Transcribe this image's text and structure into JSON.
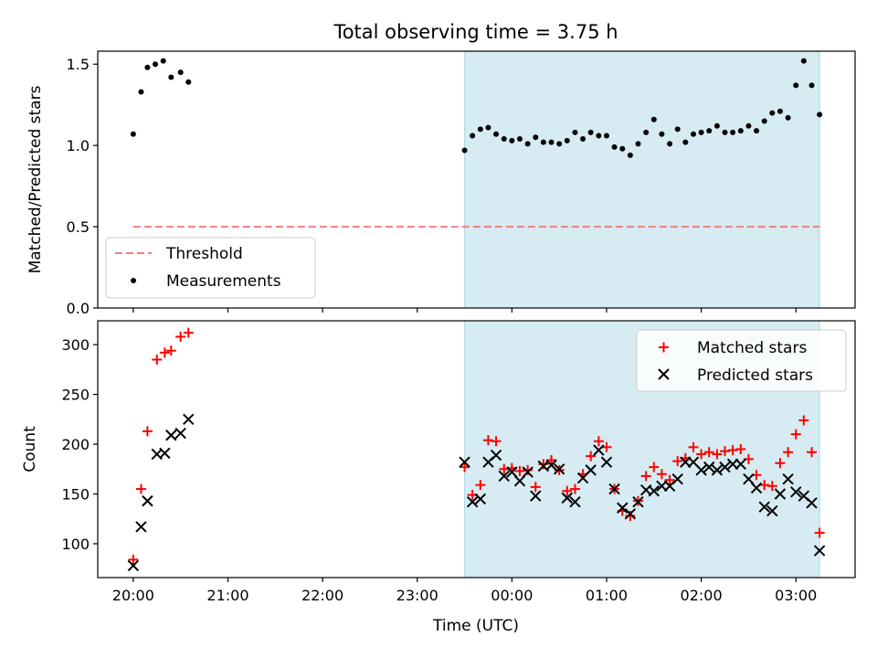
{
  "title": "Total observing time = 3.75 h",
  "xlabel": "Time (UTC)",
  "colors": {
    "shade": "#add8e6",
    "threshold": "#f08080",
    "matched": "#ff0000",
    "predicted": "#000000",
    "measurements": "#000000"
  },
  "chart_data": [
    {
      "type": "scatter",
      "ylabel": "Matched/Predicted stars",
      "xlim": [
        -0.375,
        7.625
      ],
      "ylim": [
        0.0,
        1.58
      ],
      "yticks": [
        0.0,
        0.5,
        1.0,
        1.5
      ],
      "ytick_labels": [
        "0.0",
        "0.5",
        "1.0",
        "1.5"
      ],
      "xticks": [
        0,
        1,
        2,
        3,
        4,
        5,
        6,
        7
      ],
      "xtick_labels": [
        "20:00",
        "21:00",
        "22:00",
        "23:00",
        "00:00",
        "01:00",
        "02:00",
        "03:00"
      ],
      "shaded_region": [
        3.5,
        7.25
      ],
      "threshold": {
        "name": "Threshold",
        "y": 0.5,
        "x": [
          0.0,
          7.25
        ]
      },
      "legend": {
        "position": "lower-left",
        "entries": [
          "Threshold",
          "Measurements"
        ]
      },
      "series": [
        {
          "name": "Measurements",
          "x": [
            0.0,
            0.083,
            0.15,
            0.233,
            0.317,
            0.4,
            0.5,
            0.583,
            3.5,
            3.583,
            3.667,
            3.75,
            3.833,
            3.917,
            4.0,
            4.083,
            4.167,
            4.25,
            4.333,
            4.417,
            4.5,
            4.583,
            4.667,
            4.75,
            4.833,
            4.917,
            5.0,
            5.083,
            5.167,
            5.25,
            5.333,
            5.417,
            5.5,
            5.583,
            5.667,
            5.75,
            5.833,
            5.917,
            6.0,
            6.083,
            6.167,
            6.25,
            6.333,
            6.417,
            6.5,
            6.583,
            6.667,
            6.75,
            6.833,
            6.917,
            7.0,
            7.083,
            7.167,
            7.25
          ],
          "y": [
            1.07,
            1.33,
            1.48,
            1.5,
            1.52,
            1.42,
            1.45,
            1.39,
            0.97,
            1.06,
            1.1,
            1.11,
            1.07,
            1.04,
            1.03,
            1.04,
            1.01,
            1.05,
            1.02,
            1.02,
            1.01,
            1.03,
            1.08,
            1.04,
            1.08,
            1.06,
            1.06,
            0.99,
            0.98,
            0.94,
            1.01,
            1.08,
            1.16,
            1.07,
            1.01,
            1.1,
            1.02,
            1.07,
            1.08,
            1.09,
            1.12,
            1.08,
            1.08,
            1.09,
            1.12,
            1.09,
            1.15,
            1.2,
            1.21,
            1.17,
            1.37,
            1.52,
            1.37,
            1.19
          ]
        }
      ]
    },
    {
      "type": "scatter",
      "ylabel": "Count",
      "xlabel": "Time (UTC)",
      "xlim": [
        -0.375,
        7.625
      ],
      "ylim": [
        66,
        324
      ],
      "yticks": [
        100,
        150,
        200,
        250,
        300
      ],
      "ytick_labels": [
        "100",
        "150",
        "200",
        "250",
        "300"
      ],
      "xticks": [
        0,
        1,
        2,
        3,
        4,
        5,
        6,
        7
      ],
      "xtick_labels": [
        "20:00",
        "21:00",
        "22:00",
        "23:00",
        "00:00",
        "01:00",
        "02:00",
        "03:00"
      ],
      "shaded_region": [
        3.5,
        7.25
      ],
      "legend": {
        "position": "top-right",
        "entries": [
          "Matched stars",
          "Predicted stars"
        ]
      },
      "series": [
        {
          "name": "Matched stars",
          "marker": "+",
          "x": [
            0.0,
            0.083,
            0.15,
            0.25,
            0.333,
            0.4,
            0.5,
            0.583,
            3.5,
            3.583,
            3.667,
            3.75,
            3.833,
            3.917,
            4.0,
            4.083,
            4.167,
            4.25,
            4.333,
            4.417,
            4.5,
            4.583,
            4.667,
            4.75,
            4.833,
            4.917,
            5.0,
            5.083,
            5.167,
            5.25,
            5.333,
            5.417,
            5.5,
            5.583,
            5.667,
            5.75,
            5.833,
            5.917,
            6.0,
            6.083,
            6.167,
            6.25,
            6.333,
            6.417,
            6.5,
            6.583,
            6.667,
            6.75,
            6.833,
            6.917,
            7.0,
            7.083,
            7.167,
            7.25
          ],
          "y": [
            84,
            155,
            213,
            285,
            292,
            294,
            308,
            312,
            177,
            149,
            159,
            204,
            203,
            175,
            176,
            173,
            174,
            157,
            180,
            184,
            174,
            153,
            155,
            170,
            188,
            203,
            197,
            155,
            133,
            128,
            143,
            168,
            177,
            170,
            164,
            183,
            186,
            197,
            190,
            192,
            190,
            193,
            194,
            195,
            185,
            169,
            159,
            158,
            181,
            192,
            210,
            224,
            192,
            111
          ]
        },
        {
          "name": "Predicted stars",
          "marker": "x",
          "x": [
            0.0,
            0.083,
            0.15,
            0.25,
            0.333,
            0.4,
            0.5,
            0.583,
            3.5,
            3.583,
            3.667,
            3.75,
            3.833,
            3.917,
            4.0,
            4.083,
            4.167,
            4.25,
            4.333,
            4.417,
            4.5,
            4.583,
            4.667,
            4.75,
            4.833,
            4.917,
            5.0,
            5.083,
            5.167,
            5.25,
            5.333,
            5.417,
            5.5,
            5.583,
            5.667,
            5.75,
            5.833,
            5.917,
            6.0,
            6.083,
            6.167,
            6.25,
            6.333,
            6.417,
            6.5,
            6.583,
            6.667,
            6.75,
            6.833,
            6.917,
            7.0,
            7.083,
            7.167,
            7.25
          ],
          "y": [
            78,
            117,
            143,
            190,
            191,
            209,
            211,
            225,
            182,
            142,
            145,
            182,
            189,
            168,
            172,
            163,
            172,
            148,
            178,
            179,
            175,
            146,
            142,
            166,
            174,
            194,
            182,
            155,
            136,
            130,
            142,
            154,
            153,
            158,
            158,
            165,
            182,
            182,
            174,
            177,
            174,
            177,
            180,
            180,
            165,
            156,
            137,
            133,
            150,
            165,
            152,
            148,
            141,
            93
          ]
        }
      ]
    }
  ]
}
